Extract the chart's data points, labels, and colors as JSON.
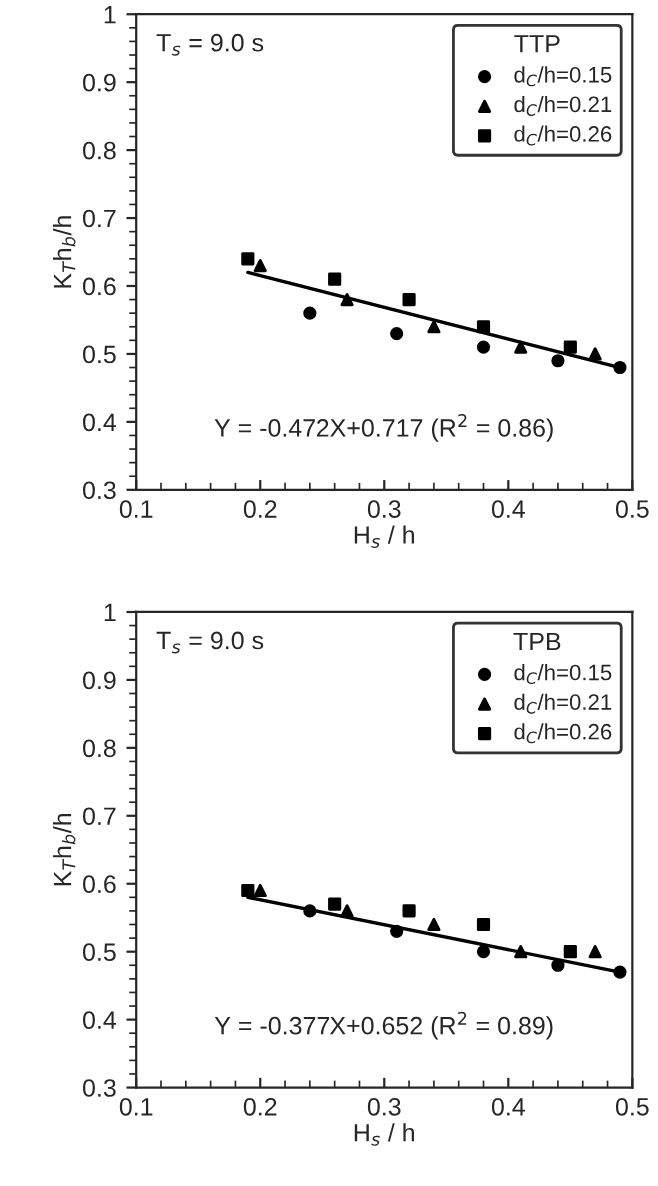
{
  "chart_data": [
    {
      "type": "scatter",
      "xlabel": "H$_{s}$ / h",
      "ylabel": "K$_{T}$h$_{b}$/h",
      "legend_title": "TTP",
      "legend": "top right",
      "xlim": [
        0.1,
        0.5
      ],
      "xticks": [
        0.1,
        0.2,
        0.3,
        0.4,
        0.5
      ],
      "ylim": [
        0.3,
        1
      ],
      "yticks": [
        0.3,
        0.4,
        0.5,
        0.6,
        0.7,
        0.8,
        0.9,
        1
      ],
      "annotations": [
        "T$_{s}$ = 9.0 s",
        "Y = -0.472X+0.717 (R$^{2}$ = 0.86)"
      ],
      "series": [
        {
          "name": "d$_{C}$/h=0.15",
          "color": "#000000",
          "marker": "circle",
          "x": [
            0.24,
            0.31,
            0.38,
            0.44,
            0.49
          ],
          "values": [
            0.56,
            0.53,
            0.51,
            0.49,
            0.48
          ]
        },
        {
          "name": "d$_{C}$/h=0.21",
          "color": "#000000",
          "marker": "triangle",
          "x": [
            0.2,
            0.27,
            0.34,
            0.41,
            0.47
          ],
          "values": [
            0.63,
            0.58,
            0.54,
            0.51,
            0.5
          ]
        },
        {
          "name": "d$_{C}$/h=0.26",
          "color": "#000000",
          "marker": "square",
          "x": [
            0.19,
            0.26,
            0.32,
            0.38,
            0.45
          ],
          "values": [
            0.64,
            0.61,
            0.58,
            0.54,
            0.51
          ]
        },
        {
          "type": "line",
          "color": "#000000",
          "line_style": "solid",
          "x": [
            0.19,
            0.49
          ],
          "values": [
            0.62,
            0.48
          ]
        }
      ]
    },
    {
      "type": "scatter",
      "xlabel": "H$_{s}$ / h",
      "ylabel": "K$_{T}$h$_{b}$/h",
      "legend_title": "TPB",
      "legend": "top right",
      "xlim": [
        0.1,
        0.5
      ],
      "xticks": [
        0.1,
        0.2,
        0.3,
        0.4,
        0.5
      ],
      "ylim": [
        0.3,
        1
      ],
      "yticks": [
        0.3,
        0.4,
        0.5,
        0.6,
        0.7,
        0.8,
        0.9,
        1
      ],
      "annotations": [
        "T$_{s}$ = 9.0 s",
        "Y = -0.377X+0.652 (R$^{2}$ = 0.89)"
      ],
      "series": [
        {
          "name": "d$_{C}$/h=0.15",
          "color": "#000000",
          "marker": "circle",
          "x": [
            0.24,
            0.31,
            0.38,
            0.44,
            0.49
          ],
          "values": [
            0.56,
            0.53,
            0.5,
            0.48,
            0.47
          ]
        },
        {
          "name": "d$_{C}$/h=0.21",
          "color": "#000000",
          "marker": "triangle",
          "x": [
            0.2,
            0.27,
            0.34,
            0.41,
            0.47
          ],
          "values": [
            0.59,
            0.56,
            0.54,
            0.5,
            0.5
          ]
        },
        {
          "name": "d$_{C}$/h=0.26",
          "color": "#000000",
          "marker": "square",
          "x": [
            0.19,
            0.26,
            0.32,
            0.38,
            0.45
          ],
          "values": [
            0.59,
            0.57,
            0.56,
            0.54,
            0.5
          ]
        },
        {
          "type": "line",
          "color": "#000000",
          "line_style": "solid",
          "x": [
            0.19,
            0.49
          ],
          "values": [
            0.58,
            0.47
          ]
        }
      ]
    }
  ]
}
